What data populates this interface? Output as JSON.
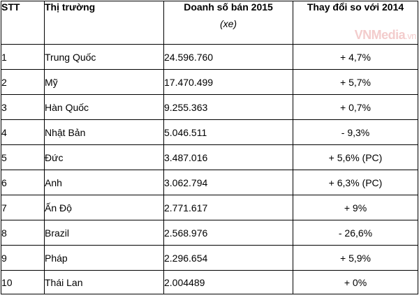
{
  "headers": {
    "stt": "STT",
    "market": "Thị trường",
    "sales": "Doanh số bán 2015",
    "sales_unit": "(xe)",
    "change": "Thay đổi so với 2014"
  },
  "watermark": {
    "main": "VNMedia",
    "suffix": ".vn"
  },
  "rows": [
    {
      "stt": "1",
      "market": "Trung Quốc",
      "sales": "24.596.760",
      "change": "+ 4,7%"
    },
    {
      "stt": "2",
      "market": "Mỹ",
      "sales": "17.470.499",
      "change": "+ 5,7%"
    },
    {
      "stt": "3",
      "market": "Hàn Quốc",
      "sales": "9.255.363",
      "change": "+ 0,7%"
    },
    {
      "stt": "4",
      "market": "Nhật Bản",
      "sales": "5.046.511",
      "change": "- 9,3%"
    },
    {
      "stt": "5",
      "market": "Đức",
      "sales": "3.487.016",
      "change": "+ 5,6% (PC)"
    },
    {
      "stt": "6",
      "market": "Anh",
      "sales": "3.062.794",
      "change": "+ 6,3% (PC)"
    },
    {
      "stt": "7",
      "market": "Ấn Độ",
      "sales": "2.771.617",
      "change": "+ 9%"
    },
    {
      "stt": "8",
      "market": "Brazil",
      "sales": "2.568.976",
      "change": "- 26,6%"
    },
    {
      "stt": "9",
      "market": "Pháp",
      "sales": "2.296.654",
      "change": "+ 5,9%"
    },
    {
      "stt": "10",
      "market": "Thái Lan",
      "sales": "2.004489",
      "change": "+ 0%"
    }
  ]
}
